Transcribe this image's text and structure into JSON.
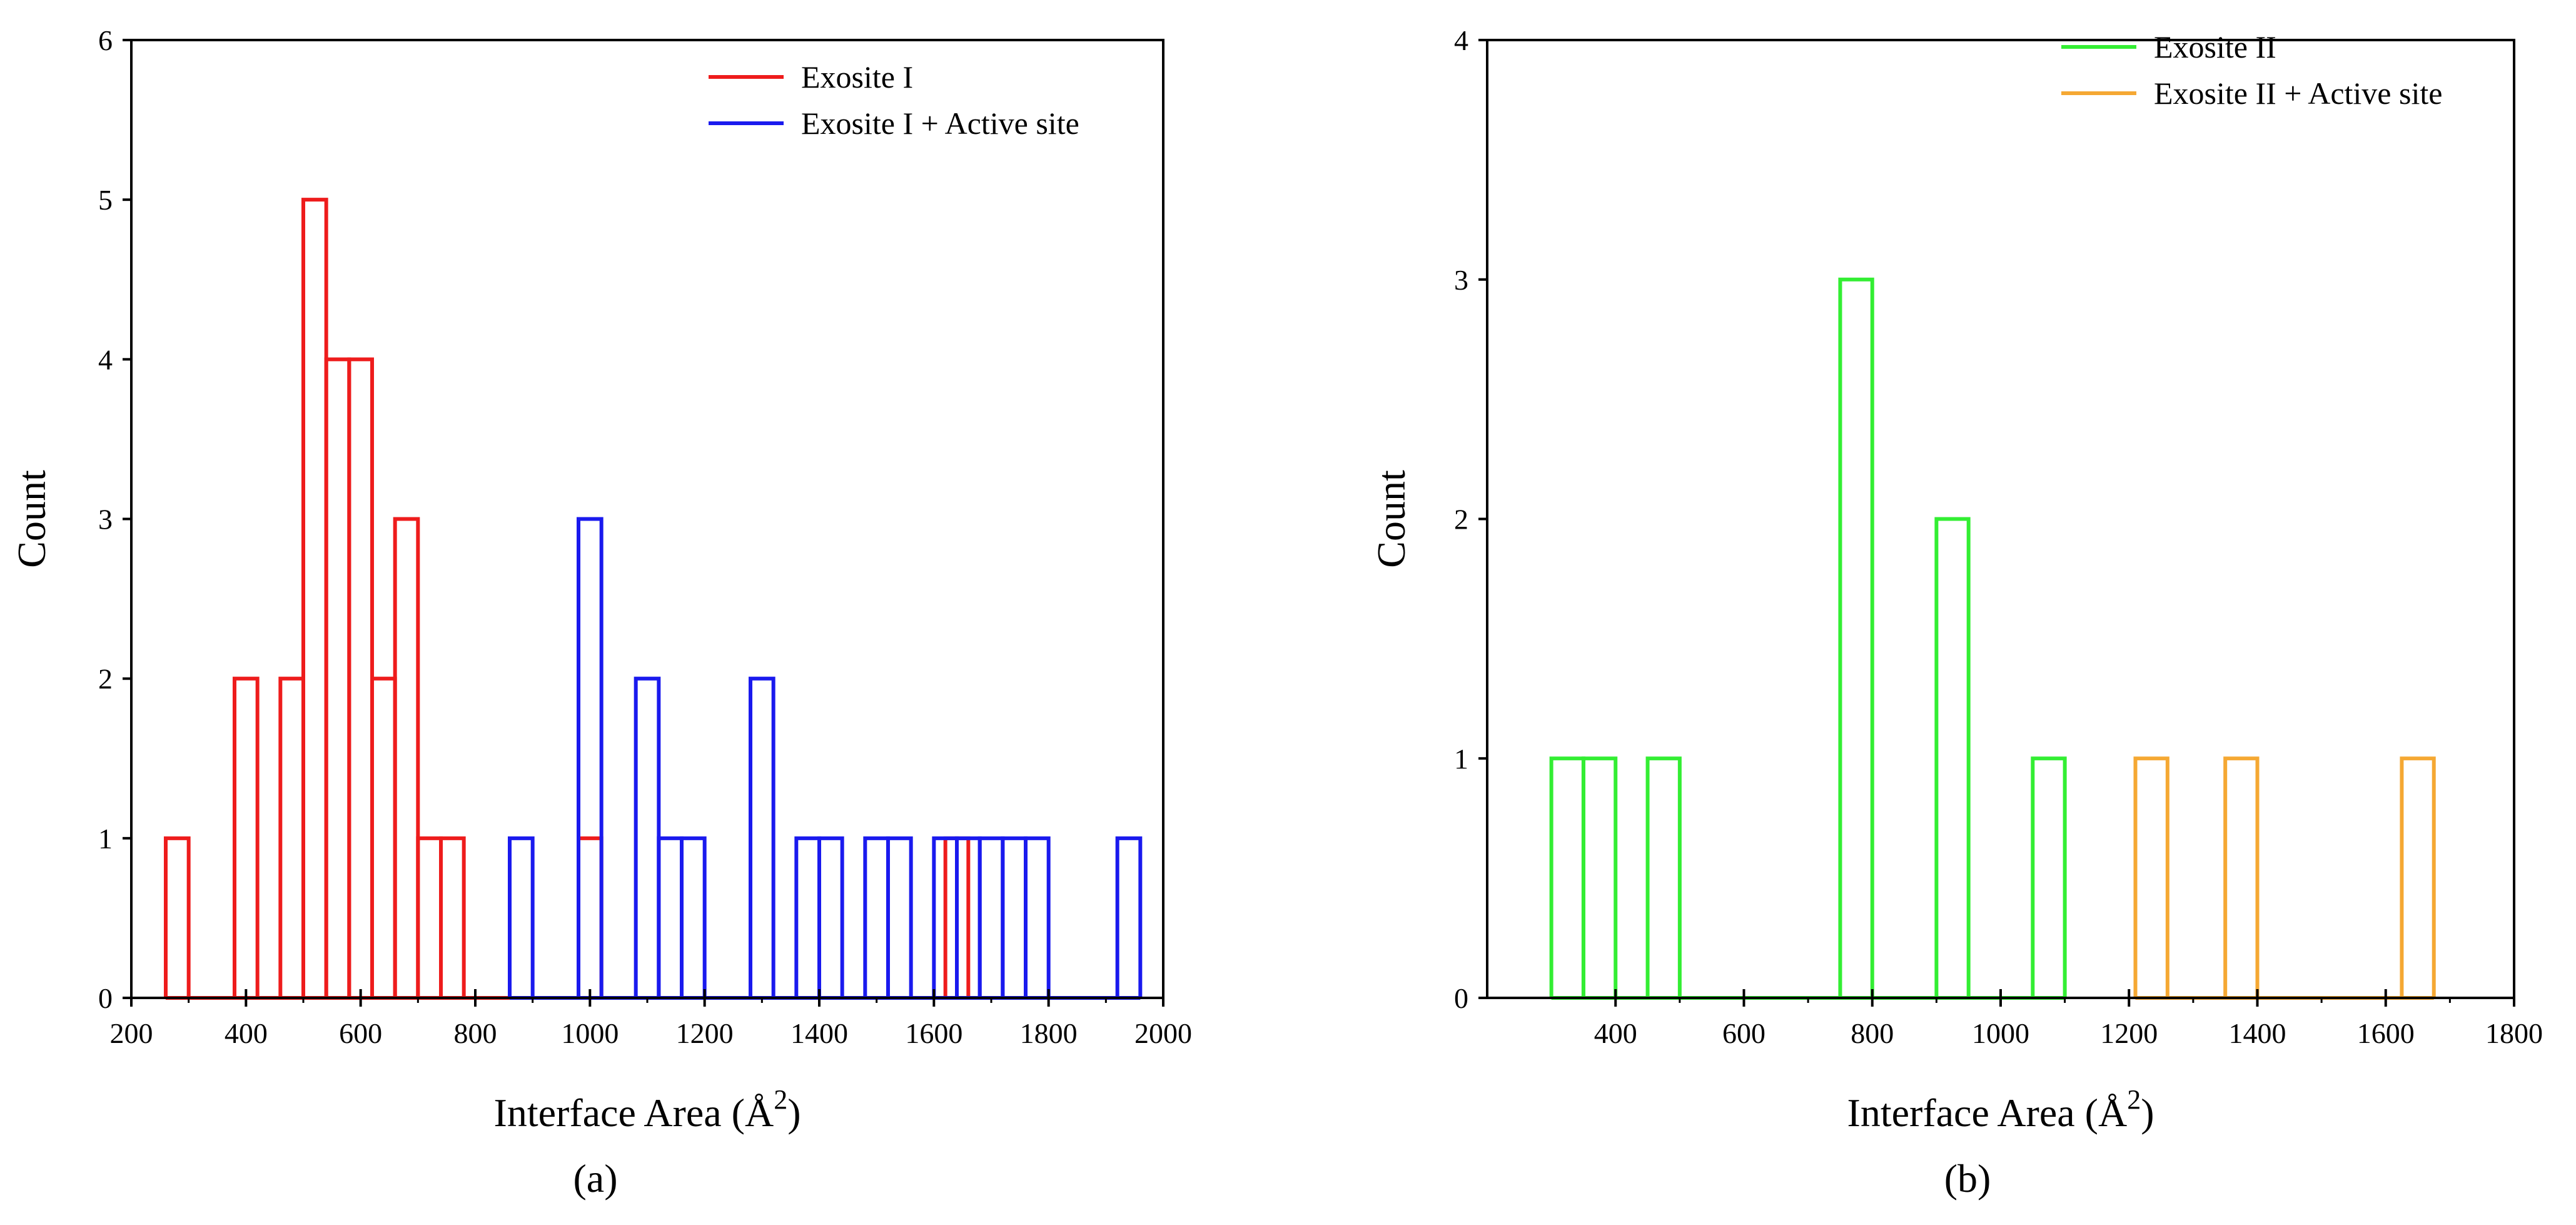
{
  "figure": {
    "panel_a_label": "(a)",
    "panel_b_label": "(b)"
  },
  "chart_data": [
    {
      "type": "histogram",
      "panel": "a",
      "xlabel": "Interface Area (Å²)",
      "xlabel_text": "Interface Area (Å",
      "xlabel_exp": "2",
      "xlabel_close": ")",
      "ylabel": "Count",
      "xlim": [
        200,
        2000
      ],
      "ylim": [
        0,
        6
      ],
      "xticks": [
        200,
        400,
        600,
        800,
        1000,
        1200,
        1400,
        1600,
        1800,
        2000
      ],
      "yticks": [
        0,
        1,
        2,
        3,
        4,
        5,
        6
      ],
      "bin_width": 40,
      "legend_position": "top-right",
      "series": [
        {
          "name": "Exosite I",
          "color": "#ee1c1c",
          "bars": [
            [
              260,
              1
            ],
            [
              380,
              2
            ],
            [
              460,
              2
            ],
            [
              500,
              5
            ],
            [
              540,
              4
            ],
            [
              580,
              4
            ],
            [
              620,
              2
            ],
            [
              660,
              3
            ],
            [
              700,
              1
            ],
            [
              740,
              1
            ],
            [
              980,
              1
            ],
            [
              1620,
              1
            ]
          ]
        },
        {
          "name": "Exosite I + Active site",
          "color": "#1a1aee",
          "bars": [
            [
              860,
              1
            ],
            [
              980,
              3
            ],
            [
              1080,
              2
            ],
            [
              1120,
              1
            ],
            [
              1160,
              1
            ],
            [
              1280,
              2
            ],
            [
              1360,
              1
            ],
            [
              1400,
              1
            ],
            [
              1480,
              1
            ],
            [
              1520,
              1
            ],
            [
              1600,
              1
            ],
            [
              1640,
              1
            ],
            [
              1680,
              1
            ],
            [
              1720,
              1
            ],
            [
              1760,
              1
            ],
            [
              1920,
              1
            ]
          ]
        }
      ]
    },
    {
      "type": "histogram",
      "panel": "b",
      "xlabel": "Interface Area (Å²)",
      "xlabel_text": "Interface Area (Å",
      "xlabel_exp": "2",
      "xlabel_close": ")",
      "ylabel": "Count",
      "xlim": [
        200,
        1800
      ],
      "ylim": [
        0,
        4
      ],
      "xticks": [
        400,
        600,
        800,
        1000,
        1200,
        1400,
        1600,
        1800
      ],
      "yticks": [
        0,
        1,
        2,
        3,
        4
      ],
      "bin_width": 50,
      "legend_position": "top-right",
      "series": [
        {
          "name": "Exosite II",
          "color": "#33ee33",
          "bars": [
            [
              300,
              1
            ],
            [
              350,
              1
            ],
            [
              450,
              1
            ],
            [
              750,
              3
            ],
            [
              900,
              2
            ],
            [
              1050,
              1
            ]
          ]
        },
        {
          "name": "Exosite II + Active site",
          "color": "#f5a833",
          "bars": [
            [
              1210,
              1
            ],
            [
              1350,
              1
            ],
            [
              1625,
              1
            ]
          ]
        }
      ]
    }
  ]
}
